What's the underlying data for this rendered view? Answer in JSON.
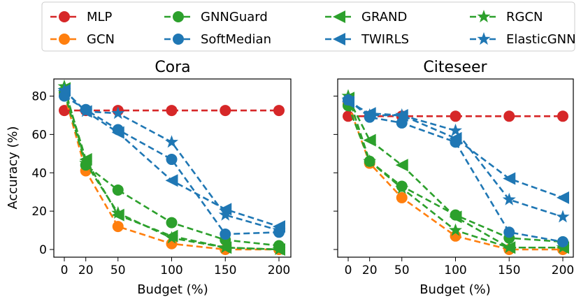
{
  "chart_data": {
    "type": "line",
    "legend": {
      "placement": "top",
      "entries": [
        "MLP",
        "GCN",
        "GNNGuard",
        "SoftMedian",
        "GRAND",
        "TWIRLS",
        "RGCN",
        "ElasticGNN"
      ]
    },
    "series_style": {
      "MLP": {
        "color": "#d62728",
        "marker": "circle"
      },
      "GCN": {
        "color": "#ff7f0e",
        "marker": "circle"
      },
      "GNNGuard": {
        "color": "#2ca02c",
        "marker": "circle"
      },
      "SoftMedian": {
        "color": "#1f77b4",
        "marker": "circle"
      },
      "GRAND": {
        "color": "#2ca02c",
        "marker": "triangle-left"
      },
      "TWIRLS": {
        "color": "#1f77b4",
        "marker": "triangle-left"
      },
      "RGCN": {
        "color": "#2ca02c",
        "marker": "star"
      },
      "ElasticGNN": {
        "color": "#1f77b4",
        "marker": "star"
      }
    },
    "panels": [
      {
        "title": "Cora",
        "xlabel": "Budget (%)",
        "ylabel": "Accuracy (%)",
        "x": [
          0,
          20,
          50,
          100,
          150,
          200
        ],
        "xticks": [
          0,
          20,
          50,
          100,
          150,
          200
        ],
        "yticks": [
          0,
          20,
          40,
          60,
          80
        ],
        "ylim": [
          -5,
          90
        ],
        "series": [
          {
            "name": "MLP",
            "values": [
              72.5,
              72.5,
              72.5,
              72.5,
              72.5,
              72.5
            ]
          },
          {
            "name": "GCN",
            "values": [
              81,
              41,
              12,
              3,
              0,
              0
            ]
          },
          {
            "name": "GNNGuard",
            "values": [
              82,
              44,
              31,
              14,
              5,
              2
            ]
          },
          {
            "name": "GRAND",
            "values": [
              84,
              47,
              18,
              7,
              1,
              0
            ]
          },
          {
            "name": "RGCN",
            "values": [
              85,
              45,
              19,
              6,
              1,
              0
            ]
          },
          {
            "name": "SoftMedian",
            "values": [
              80,
              73,
              62.5,
              47,
              8,
              9
            ]
          },
          {
            "name": "TWIRLS",
            "values": [
              83,
              72,
              61,
              36,
              21,
              12
            ]
          },
          {
            "name": "ElasticGNN",
            "values": [
              83,
              72,
              71,
              56,
              18,
              10
            ]
          }
        ]
      },
      {
        "title": "Citeseer",
        "xlabel": "Budget (%)",
        "x": [
          0,
          20,
          50,
          100,
          150,
          200
        ],
        "xticks": [
          0,
          20,
          50,
          100,
          150,
          200
        ],
        "yticks": [
          0,
          20,
          40,
          60,
          80
        ],
        "ylim": [
          -5,
          90
        ],
        "series": [
          {
            "name": "MLP",
            "values": [
              69.5,
              69.5,
              69.5,
              69.5,
              69.5,
              69.5
            ]
          },
          {
            "name": "GCN",
            "values": [
              76,
              45,
              27,
              7,
              0,
              0
            ]
          },
          {
            "name": "GNNGuard",
            "values": [
              75,
              46,
              33,
              18,
              6,
              4
            ]
          },
          {
            "name": "GRAND",
            "values": [
              79,
              57,
              44,
              17,
              1,
              1
            ]
          },
          {
            "name": "RGCN",
            "values": [
              80,
              46,
              32,
              10,
              1,
              1
            ]
          },
          {
            "name": "SoftMedian",
            "values": [
              78,
              69,
              66,
              56,
              9,
              4
            ]
          },
          {
            "name": "TWIRLS",
            "values": [
              77,
              71,
              70,
              58,
              37,
              27
            ]
          },
          {
            "name": "ElasticGNN",
            "values": [
              78,
              70,
              70,
              62,
              26,
              17
            ]
          }
        ]
      }
    ]
  }
}
